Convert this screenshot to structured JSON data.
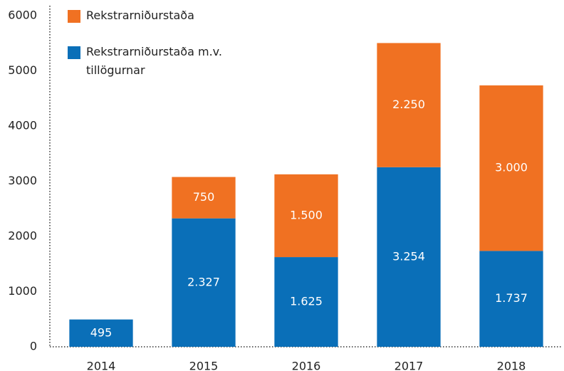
{
  "chart_data": {
    "type": "stacked_bar",
    "categories": [
      "2014",
      "2015",
      "2016",
      "2017",
      "2018"
    ],
    "series": [
      {
        "name": "Rekstrarniðurstaða",
        "color": "#f07122",
        "values": [
          null,
          750,
          1500,
          2250,
          3000
        ],
        "value_labels": [
          null,
          "750",
          "1.500",
          "2.250",
          "3.000"
        ]
      },
      {
        "name": "Rekstrarniðurstaða m.v. tillögurnar",
        "color": "#0a6fb8",
        "values": [
          495,
          2327,
          1625,
          3254,
          1737
        ],
        "value_labels": [
          "495",
          "2.327",
          "1.625",
          "3.254",
          "1.737"
        ]
      }
    ],
    "ylim": [
      0,
      6000
    ],
    "yticks": [
      0,
      1000,
      2000,
      3000,
      4000,
      5000,
      6000
    ],
    "grid": false,
    "legend": "top-left"
  }
}
